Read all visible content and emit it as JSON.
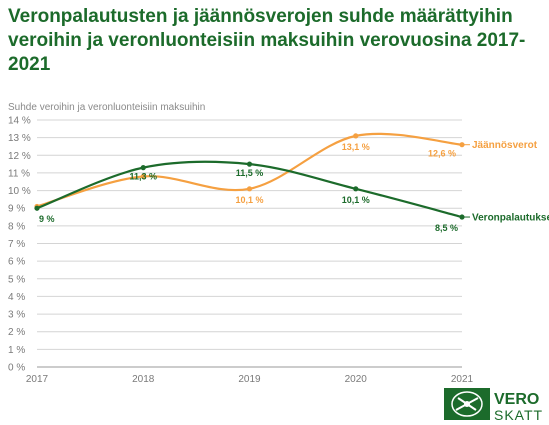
{
  "title": "Veronpalautusten ja jäännösverojen suhde määrättyihin veroihin ja veronluonteisiin maksuihin verovuosina 2017-2021",
  "logo": {
    "line1": "VERO",
    "line2": "SKATT",
    "color": "#1c6b2b"
  },
  "chart_data": {
    "type": "line",
    "ylabel": "Suhde veroihin ja veronluonteisiin maksuihin",
    "x": [
      "2017",
      "2018",
      "2019",
      "2020",
      "2021"
    ],
    "ylim": [
      0,
      14
    ],
    "yticks": [
      0,
      1,
      2,
      3,
      4,
      5,
      6,
      7,
      8,
      9,
      10,
      11,
      12,
      13,
      14
    ],
    "ytick_labels": [
      "0 %",
      "1 %",
      "2 %",
      "3 %",
      "4 %",
      "5 %",
      "6 %",
      "7 %",
      "8 %",
      "9 %",
      "10 %",
      "11 %",
      "12 %",
      "13 %",
      "14 %"
    ],
    "grid": true,
    "series": [
      {
        "name": "Jäännösverot",
        "color": "#f5a041",
        "values": [
          9.1,
          10.8,
          10.1,
          13.1,
          12.6
        ],
        "labels": [
          "",
          "",
          "10,1 %",
          "13,1 %",
          "12,6 %"
        ]
      },
      {
        "name": "Veronpalautukset",
        "color": "#1c6b2b",
        "values": [
          9.0,
          11.3,
          11.5,
          10.1,
          8.5
        ],
        "labels": [
          "9 %",
          "11,3 %",
          "11,5 %",
          "10,1 %",
          "8,5 %"
        ]
      }
    ]
  }
}
